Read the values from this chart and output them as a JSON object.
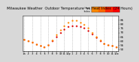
{
  "title": "Milwaukee Weather  Outdoor Temperature  vs Heat Index  (24 Hours)",
  "title_fontsize": 3.8,
  "bg_color": "#d8d8d8",
  "plot_bg_color": "#ffffff",
  "grid_color": "#999999",
  "temp_x": [
    0,
    1,
    2,
    3,
    4,
    5,
    6,
    7,
    8,
    9,
    10,
    11,
    12,
    13,
    14,
    15,
    16,
    17,
    18,
    19,
    20,
    21,
    22,
    23
  ],
  "temp_y": [
    62,
    60,
    58,
    56,
    54,
    53,
    55,
    60,
    65,
    70,
    74,
    77,
    78,
    78,
    77,
    75,
    72,
    68,
    64,
    60,
    57,
    55,
    54,
    53
  ],
  "heat_x": [
    0,
    1,
    2,
    3,
    4,
    5,
    6,
    7,
    8,
    9,
    10,
    11,
    12,
    13,
    14,
    15,
    16,
    17,
    18,
    19,
    20,
    21,
    22,
    23
  ],
  "heat_y": [
    62,
    60,
    58,
    56,
    54,
    53,
    55,
    61,
    67,
    73,
    78,
    82,
    84,
    84,
    82,
    79,
    75,
    70,
    65,
    61,
    57,
    55,
    54,
    53
  ],
  "temp_color": "#dd0000",
  "heat_color": "#ff8800",
  "ylim": [
    48,
    90
  ],
  "ytick_vals": [
    50,
    55,
    60,
    65,
    70,
    75,
    80,
    85
  ],
  "ytick_labels": [
    "50",
    "55",
    "60",
    "65",
    "70",
    "75",
    "80",
    "85"
  ],
  "xtick_labels": [
    "1a",
    "2",
    "3",
    "4",
    "5",
    "6",
    "7",
    "8",
    "9",
    "10",
    "11",
    "12p",
    "1",
    "2",
    "3",
    "4",
    "5",
    "6",
    "7",
    "8",
    "9",
    "10",
    "11",
    "12a"
  ],
  "legend_bar_colors": [
    "#ff8800",
    "#ff6600",
    "#ff2200",
    "#ff0000"
  ],
  "vgrid_positions": [
    0,
    2,
    4,
    6,
    8,
    10,
    12,
    14,
    16,
    18,
    20,
    22
  ]
}
